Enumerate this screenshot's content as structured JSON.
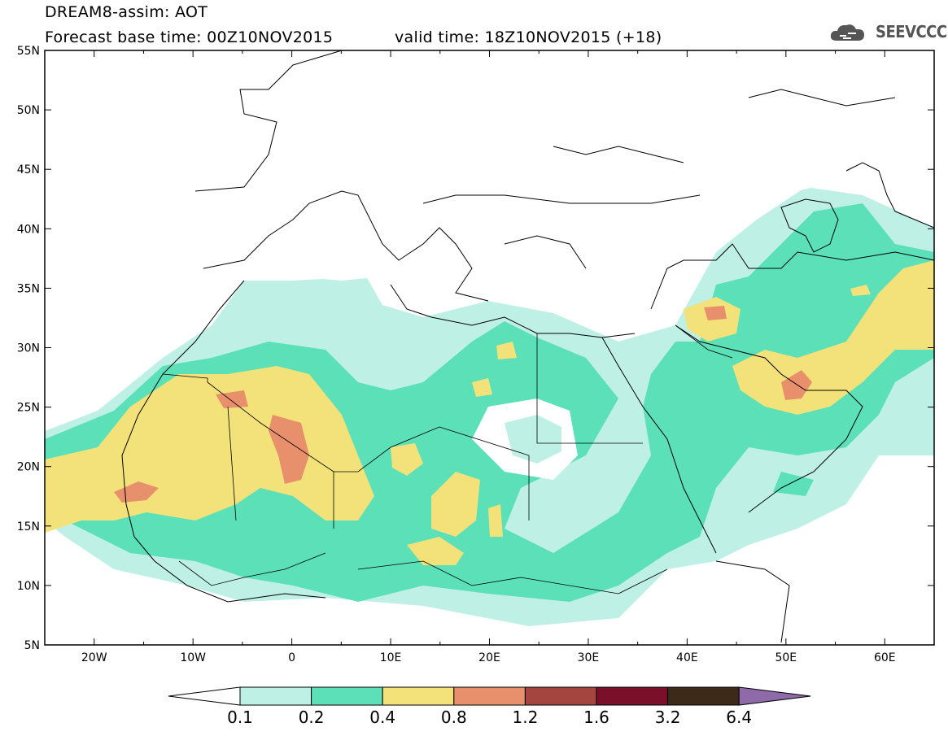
{
  "title": {
    "line1": "DREAM8-assim: AOT",
    "line2": "Forecast base time: 00Z10NOV2015",
    "valid": "valid time: 18Z10NOV2015 (+18)"
  },
  "logo": {
    "text": "SEEVCCC",
    "icon": "cloud-icon"
  },
  "map": {
    "lat_labels": [
      "55N",
      "50N",
      "45N",
      "40N",
      "35N",
      "30N",
      "25N",
      "20N",
      "15N",
      "10N",
      "5N"
    ],
    "lat_values": [
      55,
      50,
      45,
      40,
      35,
      30,
      25,
      20,
      15,
      10,
      5
    ],
    "lon_labels": [
      "20W",
      "10W",
      "0",
      "10E",
      "20E",
      "30E",
      "40E",
      "50E",
      "60E"
    ],
    "lon_values": [
      -20,
      -10,
      0,
      10,
      20,
      30,
      40,
      50,
      60
    ],
    "lon_range": [
      -25,
      65
    ],
    "lat_range": [
      5,
      55
    ]
  },
  "legend": {
    "levels": [
      "0.1",
      "0.2",
      "0.4",
      "0.8",
      "1.2",
      "1.6",
      "3.2",
      "6.4"
    ],
    "colors": [
      "#bff0e6",
      "#5be0b8",
      "#f3e27a",
      "#e88f6b",
      "#a5453f",
      "#7a0f2a",
      "#3e2a18",
      "#8e6aa8"
    ],
    "under_color": "#ffffff"
  }
}
